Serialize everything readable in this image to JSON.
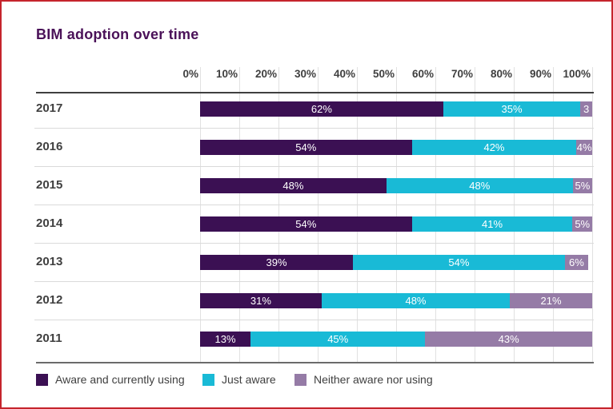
{
  "page": {
    "border_color": "#c5242c",
    "background": "#ffffff",
    "text_color": "#3f3f3f"
  },
  "chart_data": {
    "type": "bar",
    "orientation": "horizontal",
    "stacked": true,
    "title": "BIM adoption over time",
    "title_color": "#4a1158",
    "categories": [
      "2017",
      "2016",
      "2015",
      "2014",
      "2013",
      "2012",
      "2011"
    ],
    "series": [
      {
        "name": "Aware and currently using",
        "color": "#3b1053",
        "values": [
          62,
          54,
          48,
          54,
          39,
          31,
          13
        ]
      },
      {
        "name": "Just aware",
        "color": "#19bad6",
        "values": [
          35,
          42,
          48,
          41,
          54,
          48,
          45
        ]
      },
      {
        "name": "Neither aware nor using",
        "color": "#957ba6",
        "values": [
          3,
          4,
          5,
          5,
          6,
          21,
          43
        ]
      }
    ],
    "bar_labels": [
      [
        "62%",
        "35%",
        "3"
      ],
      [
        "54%",
        "42%",
        "4%"
      ],
      [
        "48%",
        "48%",
        "5%"
      ],
      [
        "54%",
        "41%",
        "5%"
      ],
      [
        "39%",
        "54%",
        "6%"
      ],
      [
        "31%",
        "48%",
        "21%"
      ],
      [
        "13%",
        "45%",
        "43%"
      ]
    ],
    "x_ticks": [
      "0%",
      "10%",
      "20%",
      "30%",
      "40%",
      "50%",
      "60%",
      "70%",
      "80%",
      "90%",
      "100%"
    ],
    "xlim": [
      0,
      100
    ],
    "grid": "vertical",
    "legend_position": "bottom"
  }
}
